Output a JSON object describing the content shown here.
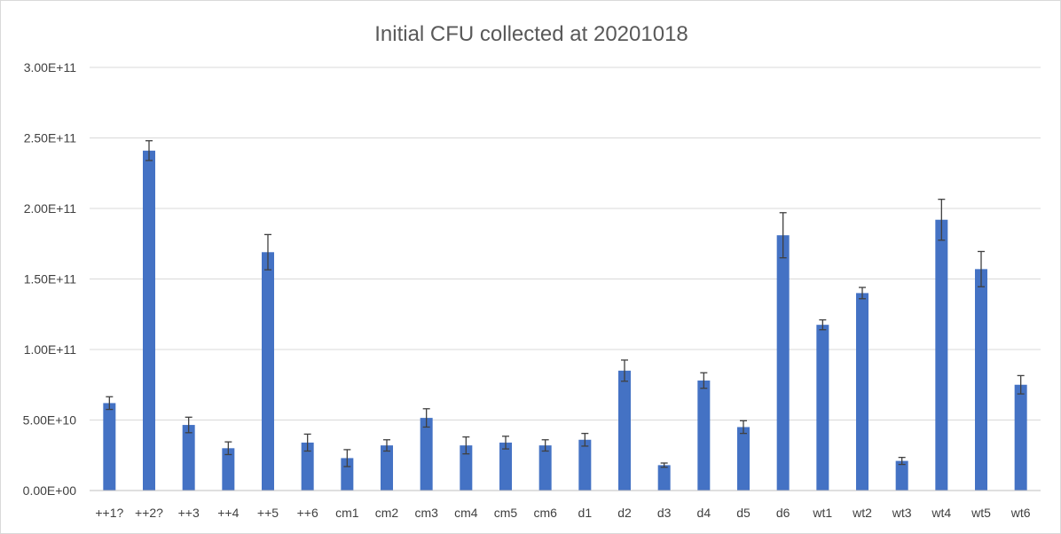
{
  "chart_data": {
    "type": "bar",
    "title": "Initial CFU collected at 20201018",
    "xlabel": "",
    "ylabel": "",
    "categories": [
      "++1?",
      "++2?",
      "++3",
      "++4",
      "++5",
      "++6",
      "cm1",
      "cm2",
      "cm3",
      "cm4",
      "cm5",
      "cm6",
      "d1",
      "d2",
      "d3",
      "d4",
      "d5",
      "d6",
      "wt1",
      "wt2",
      "wt3",
      "wt4",
      "wt5",
      "wt6"
    ],
    "values": [
      62000000000.0,
      241000000000.0,
      46500000000.0,
      30000000000.0,
      169000000000.0,
      34000000000.0,
      23000000000.0,
      32000000000.0,
      51500000000.0,
      32000000000.0,
      34000000000.0,
      32000000000.0,
      36000000000.0,
      85000000000.0,
      18000000000.0,
      78000000000.0,
      45000000000.0,
      181000000000.0,
      117500000000.0,
      140000000000.0,
      21000000000.0,
      192000000000.0,
      157000000000.0,
      75000000000.0
    ],
    "error": [
      4500000000.0,
      7000000000.0,
      5500000000.0,
      4500000000.0,
      12500000000.0,
      6000000000.0,
      6000000000.0,
      4000000000.0,
      6500000000.0,
      6000000000.0,
      4500000000.0,
      4000000000.0,
      4500000000.0,
      7500000000.0,
      1500000000.0,
      5500000000.0,
      4500000000.0,
      16000000000.0,
      3500000000.0,
      4000000000.0,
      2500000000.0,
      14500000000.0,
      12500000000.0,
      6500000000.0
    ],
    "ylim": [
      0,
      300000000000.0
    ],
    "yticks": [
      0,
      50000000000.0,
      100000000000.0,
      150000000000.0,
      200000000000.0,
      250000000000.0,
      300000000000.0
    ],
    "ytick_labels": [
      "0.00E+00",
      "5.00E+10",
      "1.00E+11",
      "1.50E+11",
      "2.00E+11",
      "2.50E+11",
      "3.00E+11"
    ],
    "grid": true,
    "legend": "none",
    "bar_color": "#4472C4",
    "error_bar_color": "#404040",
    "grid_color": "#d9d9d9",
    "axis_color": "#bfbfbf"
  }
}
